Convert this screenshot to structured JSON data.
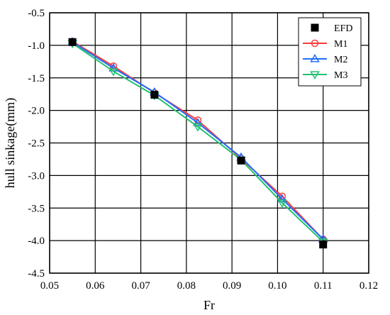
{
  "chart_data": {
    "type": "line",
    "xlabel": "Fr",
    "ylabel": "hull sinkage(mm)",
    "xlim": [
      0.05,
      0.12
    ],
    "ylim": [
      -4.5,
      -0.5
    ],
    "xticks": [
      0.05,
      0.06,
      0.07,
      0.08,
      0.09,
      0.1,
      0.11,
      0.12
    ],
    "xtick_labels": [
      "0.05",
      "0.06",
      "0.07",
      "0.08",
      "0.09",
      "0.10",
      "0.11",
      "0.12"
    ],
    "yticks": [
      -0.5,
      -1.0,
      -1.5,
      -2.0,
      -2.5,
      -3.0,
      -3.5,
      -4.0,
      -4.5
    ],
    "ytick_labels": [
      "-0.5",
      "-1.0",
      "-1.5",
      "-2.0",
      "-2.5",
      "-3.0",
      "-3.5",
      "-4.0",
      "-4.5"
    ],
    "grid": true,
    "legend_position": "top-right",
    "series": [
      {
        "name": "EFD",
        "marker": "square",
        "color": "#000000",
        "line": false,
        "x": [
          0.055,
          0.073,
          0.092,
          0.11
        ],
        "y": [
          -0.95,
          -1.76,
          -2.77,
          -4.06
        ]
      },
      {
        "name": "M1",
        "marker": "circle",
        "color": "#ff3b3b",
        "line": true,
        "x": [
          0.055,
          0.064,
          0.073,
          0.0825,
          0.092,
          0.101,
          0.11
        ],
        "y": [
          -0.94,
          -1.32,
          -1.73,
          -2.15,
          -2.74,
          -3.32,
          -3.98
        ]
      },
      {
        "name": "M2",
        "marker": "triangle-up",
        "color": "#1f6fff",
        "line": true,
        "x": [
          0.055,
          0.064,
          0.073,
          0.0825,
          0.092,
          0.101,
          0.11
        ],
        "y": [
          -0.95,
          -1.35,
          -1.72,
          -2.19,
          -2.72,
          -3.36,
          -3.98
        ]
      },
      {
        "name": "M3",
        "marker": "triangle-down",
        "color": "#20c070",
        "line": true,
        "x": [
          0.055,
          0.064,
          0.073,
          0.0825,
          0.092,
          0.101,
          0.11
        ],
        "y": [
          -0.97,
          -1.4,
          -1.77,
          -2.25,
          -2.76,
          -3.42,
          -4.02
        ]
      }
    ]
  }
}
